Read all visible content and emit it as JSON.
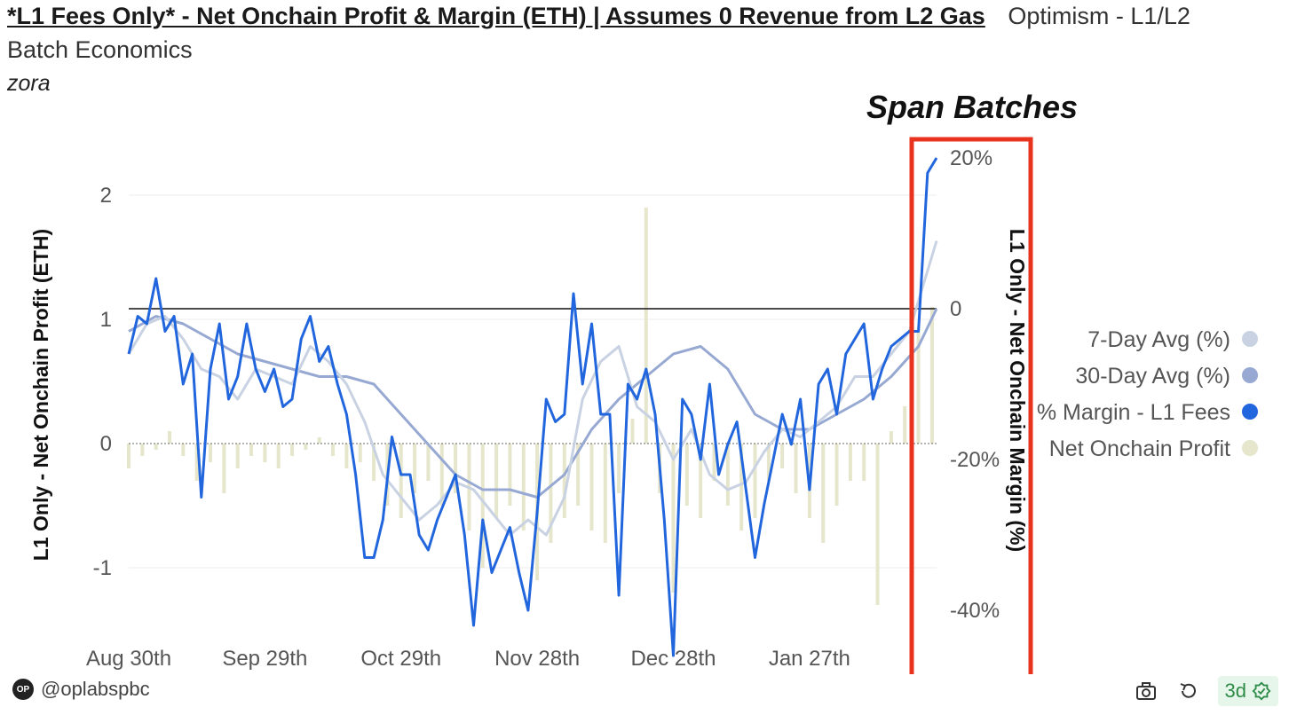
{
  "header": {
    "title": "*L1 Fees Only* - Net Onchain Profit & Margin (ETH) | Assumes 0 Revenue from L2 Gas",
    "subtitle_part1": "Optimism - L1/L2",
    "subtitle_part2": "Batch Economics",
    "query_name": "zora"
  },
  "annotation": {
    "label": "Span Batches"
  },
  "footer": {
    "logo_text": "OP",
    "handle": "@oplabspbc",
    "badge": "3d"
  },
  "colors": {
    "bars": "#e6e6cc",
    "margin": "#2266dd",
    "avg7": "#c8d2e2",
    "avg30": "#97a9d2",
    "zero_line": "#111111",
    "annotation_box": "#e8331e"
  },
  "icons": [
    "camera-icon",
    "refresh-icon",
    "verified-icon"
  ],
  "chart_data": {
    "type": "bar+line",
    "y_left_label": "L1 Only - Net Onchain Profit (ETH)",
    "y_right_label": "L1 Only - Net Onchain Margin (%)",
    "y_left_ticks": [
      "2",
      "1",
      "0",
      "-1"
    ],
    "y_left_tick_values": [
      2,
      1,
      0,
      -1
    ],
    "y_right_ticks": [
      "20%",
      "0",
      "-20%",
      "-40%"
    ],
    "y_right_tick_values": [
      20,
      0,
      -20,
      -40
    ],
    "ylim_left": [
      -1.5,
      2.5
    ],
    "ylim_right": [
      -47,
      20
    ],
    "x_ticks": [
      "Aug 30th",
      "Sep 29th",
      "Oct 29th",
      "Nov 28th",
      "Dec 28th",
      "Jan 27th"
    ],
    "x_tick_days": [
      0,
      30,
      60,
      90,
      120,
      150
    ],
    "x_range_days": [
      0,
      178
    ],
    "legend_position": "right",
    "legend": [
      {
        "name": "7-Day Avg (%)",
        "color": "#c8d2e2"
      },
      {
        "name": "30-Day Avg (%)",
        "color": "#97a9d2"
      },
      {
        "name": "% Margin - L1 Fees",
        "color": "#2266dd"
      },
      {
        "name": "Net Onchain Profit",
        "color": "#e6e6cc"
      }
    ],
    "series": [
      {
        "name": "Net Onchain Profit",
        "axis": "left",
        "kind": "bar",
        "x_days": [
          0,
          3,
          6,
          9,
          12,
          15,
          18,
          21,
          24,
          27,
          30,
          33,
          36,
          39,
          42,
          45,
          48,
          51,
          54,
          57,
          60,
          63,
          66,
          69,
          72,
          75,
          78,
          81,
          84,
          87,
          90,
          93,
          96,
          99,
          102,
          105,
          108,
          111,
          114,
          117,
          120,
          123,
          126,
          129,
          132,
          135,
          138,
          141,
          144,
          147,
          150,
          153,
          156,
          159,
          162,
          165,
          168,
          171,
          174,
          177
        ],
        "values": [
          -0.2,
          -0.1,
          -0.05,
          0.1,
          -0.1,
          -0.3,
          -0.15,
          -0.4,
          -0.2,
          -0.1,
          -0.15,
          -0.2,
          -0.1,
          -0.05,
          0.05,
          -0.1,
          -0.2,
          -0.15,
          -0.3,
          -0.5,
          -0.6,
          -0.4,
          -0.3,
          -0.5,
          -0.4,
          -0.7,
          -1.0,
          -0.6,
          -0.5,
          -0.7,
          -1.1,
          -0.8,
          -0.6,
          -0.5,
          -0.7,
          -0.8,
          -0.4,
          0.2,
          1.9,
          -0.4,
          -1.2,
          -0.5,
          -0.6,
          -0.3,
          -0.5,
          -0.7,
          -0.6,
          -0.3,
          -0.2,
          -0.4,
          -0.6,
          -0.8,
          -0.5,
          -0.3,
          -0.3,
          -1.3,
          0.1,
          0.3,
          0.9,
          1.1
        ]
      },
      {
        "name": "% Margin - L1 Fees",
        "axis": "right",
        "kind": "line",
        "x_days": [
          0,
          2,
          4,
          6,
          8,
          10,
          12,
          14,
          16,
          18,
          20,
          22,
          24,
          26,
          28,
          30,
          32,
          34,
          36,
          38,
          40,
          42,
          44,
          46,
          48,
          50,
          52,
          54,
          56,
          58,
          60,
          62,
          64,
          66,
          68,
          70,
          72,
          74,
          76,
          78,
          80,
          82,
          84,
          86,
          88,
          90,
          92,
          94,
          96,
          98,
          100,
          102,
          104,
          106,
          108,
          110,
          112,
          114,
          116,
          118,
          120,
          122,
          124,
          126,
          128,
          130,
          132,
          134,
          136,
          138,
          140,
          142,
          144,
          146,
          148,
          150,
          152,
          154,
          156,
          158,
          160,
          162,
          164,
          166,
          168,
          170,
          172,
          174,
          176,
          178
        ],
        "values": [
          -6,
          -1,
          -2,
          4,
          -3,
          -1,
          -10,
          -6,
          -25,
          -8,
          -2,
          -12,
          -9,
          -2,
          -8,
          -11,
          -8,
          -13,
          -12,
          -4,
          -1,
          -7,
          -5,
          -10,
          -14,
          -22,
          -33,
          -33,
          -28,
          -17,
          -22,
          -22,
          -30,
          -32,
          -28,
          -25,
          -22,
          -30,
          -42,
          -28,
          -35,
          -32,
          -29,
          -35,
          -40,
          -27,
          -12,
          -15,
          -14,
          2,
          -10,
          -2,
          -14,
          -14,
          -38,
          -10,
          -12,
          -8,
          -14,
          -28,
          -46,
          -12,
          -14,
          -20,
          -10,
          -22,
          -18,
          -15,
          -24,
          -33,
          -26,
          -20,
          -14,
          -18,
          -12,
          -24,
          -10,
          -8,
          -14,
          -6,
          -4,
          -2,
          -12,
          -8,
          -5,
          -4,
          -3,
          -3,
          18,
          20
        ]
      },
      {
        "name": "7-Day Avg (%)",
        "axis": "right",
        "kind": "line",
        "x_days": [
          0,
          4,
          8,
          12,
          16,
          20,
          24,
          28,
          32,
          36,
          40,
          44,
          48,
          52,
          56,
          60,
          64,
          68,
          72,
          76,
          80,
          84,
          88,
          92,
          96,
          100,
          104,
          108,
          112,
          116,
          120,
          124,
          128,
          132,
          136,
          140,
          144,
          148,
          152,
          156,
          160,
          164,
          168,
          172,
          176,
          178
        ],
        "values": [
          -6,
          -2,
          -1,
          -4,
          -8,
          -9,
          -12,
          -8,
          -9,
          -10,
          -5,
          -7,
          -10,
          -15,
          -22,
          -25,
          -28,
          -26,
          -23,
          -24,
          -27,
          -30,
          -28,
          -30,
          -25,
          -12,
          -7,
          -5,
          -13,
          -15,
          -20,
          -16,
          -22,
          -24,
          -23,
          -19,
          -16,
          -17,
          -15,
          -13,
          -9,
          -9,
          -6,
          -3,
          5,
          9
        ]
      },
      {
        "name": "30-Day Avg (%)",
        "axis": "right",
        "kind": "line",
        "x_days": [
          0,
          6,
          12,
          18,
          24,
          30,
          36,
          42,
          48,
          54,
          60,
          66,
          72,
          78,
          84,
          90,
          96,
          102,
          108,
          114,
          120,
          126,
          132,
          138,
          144,
          150,
          156,
          162,
          168,
          174,
          178
        ],
        "values": [
          -3,
          -1,
          -2,
          -4,
          -6,
          -7,
          -8,
          -9,
          -9,
          -10,
          -14,
          -18,
          -22,
          -24,
          -24,
          -25,
          -22,
          -16,
          -12,
          -9,
          -6,
          -5,
          -8,
          -14,
          -16,
          -16,
          -14,
          -12,
          -9,
          -5,
          0
        ]
      }
    ]
  }
}
